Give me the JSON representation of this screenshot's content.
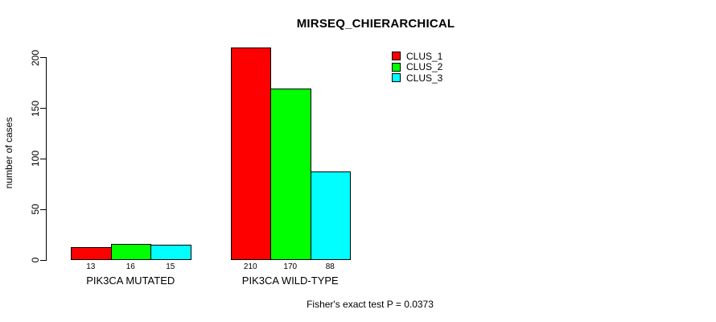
{
  "chart_data": {
    "type": "bar",
    "title": "MIRSEQ_CHIERARCHICAL",
    "ylabel": "number of cases",
    "xlabel": "",
    "categories": [
      "PIK3CA MUTATED",
      "PIK3CA WILD-TYPE"
    ],
    "series": [
      {
        "name": "CLUS_1",
        "color": "#ff0000",
        "values": [
          13,
          210
        ]
      },
      {
        "name": "CLUS_2",
        "color": "#00ff00",
        "values": [
          16,
          170
        ]
      },
      {
        "name": "CLUS_3",
        "color": "#00ffff",
        "values": [
          15,
          88
        ]
      }
    ],
    "yticks": [
      0,
      50,
      100,
      150,
      200
    ],
    "ylim": [
      0,
      210
    ],
    "grid": false,
    "bar_value_labels": [
      [
        "13",
        "16",
        "15"
      ],
      [
        "210",
        "170",
        "88"
      ]
    ],
    "legend_position": "top-right",
    "annotation": "Fisher's exact test P = 0.0373"
  },
  "colors": {
    "background": "#ffffff",
    "axis": "#000000",
    "text": "#000000"
  }
}
